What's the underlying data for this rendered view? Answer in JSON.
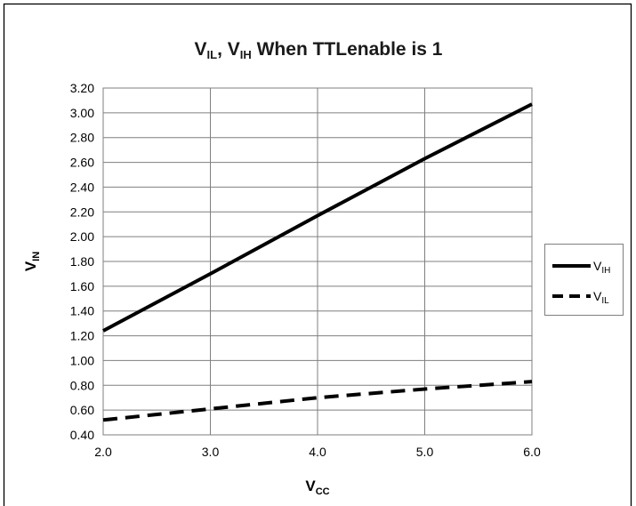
{
  "chart_data": {
    "type": "line",
    "title": {
      "parts": [
        {
          "text": "V"
        },
        {
          "text": "IL",
          "sub": true
        },
        {
          "text": ", V"
        },
        {
          "text": "IH",
          "sub": true
        },
        {
          "text": " When TTLenable is 1"
        }
      ]
    },
    "xlabel": {
      "parts": [
        {
          "text": "V"
        },
        {
          "text": "CC",
          "sub": true
        }
      ]
    },
    "ylabel": {
      "parts": [
        {
          "text": "V"
        },
        {
          "text": "IN",
          "sub": true
        }
      ]
    },
    "xlim": [
      2.0,
      6.0
    ],
    "ylim": [
      0.4,
      3.2
    ],
    "xticks": [
      2.0,
      3.0,
      4.0,
      5.0,
      6.0
    ],
    "xtick_labels": [
      "2.0",
      "3.0",
      "4.0",
      "5.0",
      "6.0"
    ],
    "yticks": [
      0.4,
      0.6,
      0.8,
      1.0,
      1.2,
      1.4,
      1.6,
      1.8,
      2.0,
      2.2,
      2.4,
      2.6,
      2.8,
      3.0,
      3.2
    ],
    "ytick_labels": [
      "0.40",
      "0.60",
      "0.80",
      "1.00",
      "1.20",
      "1.40",
      "1.60",
      "1.80",
      "2.00",
      "2.20",
      "2.40",
      "2.60",
      "2.80",
      "3.00",
      "3.20"
    ],
    "grid": true,
    "legend_position": "right",
    "series": [
      {
        "name": "VIH",
        "legend": {
          "parts": [
            {
              "text": "V"
            },
            {
              "text": "IH",
              "sub": true
            }
          ]
        },
        "style": "solid",
        "color": "#000000",
        "x": [
          2.0,
          3.0,
          4.0,
          5.0,
          6.0
        ],
        "y": [
          1.24,
          1.7,
          2.17,
          2.63,
          3.07
        ]
      },
      {
        "name": "VIL",
        "legend": {
          "parts": [
            {
              "text": "V"
            },
            {
              "text": "IL",
              "sub": true
            }
          ]
        },
        "style": "dashed",
        "color": "#000000",
        "x": [
          2.0,
          3.0,
          4.0,
          5.0,
          6.0
        ],
        "y": [
          0.52,
          0.61,
          0.7,
          0.77,
          0.83
        ]
      }
    ]
  }
}
